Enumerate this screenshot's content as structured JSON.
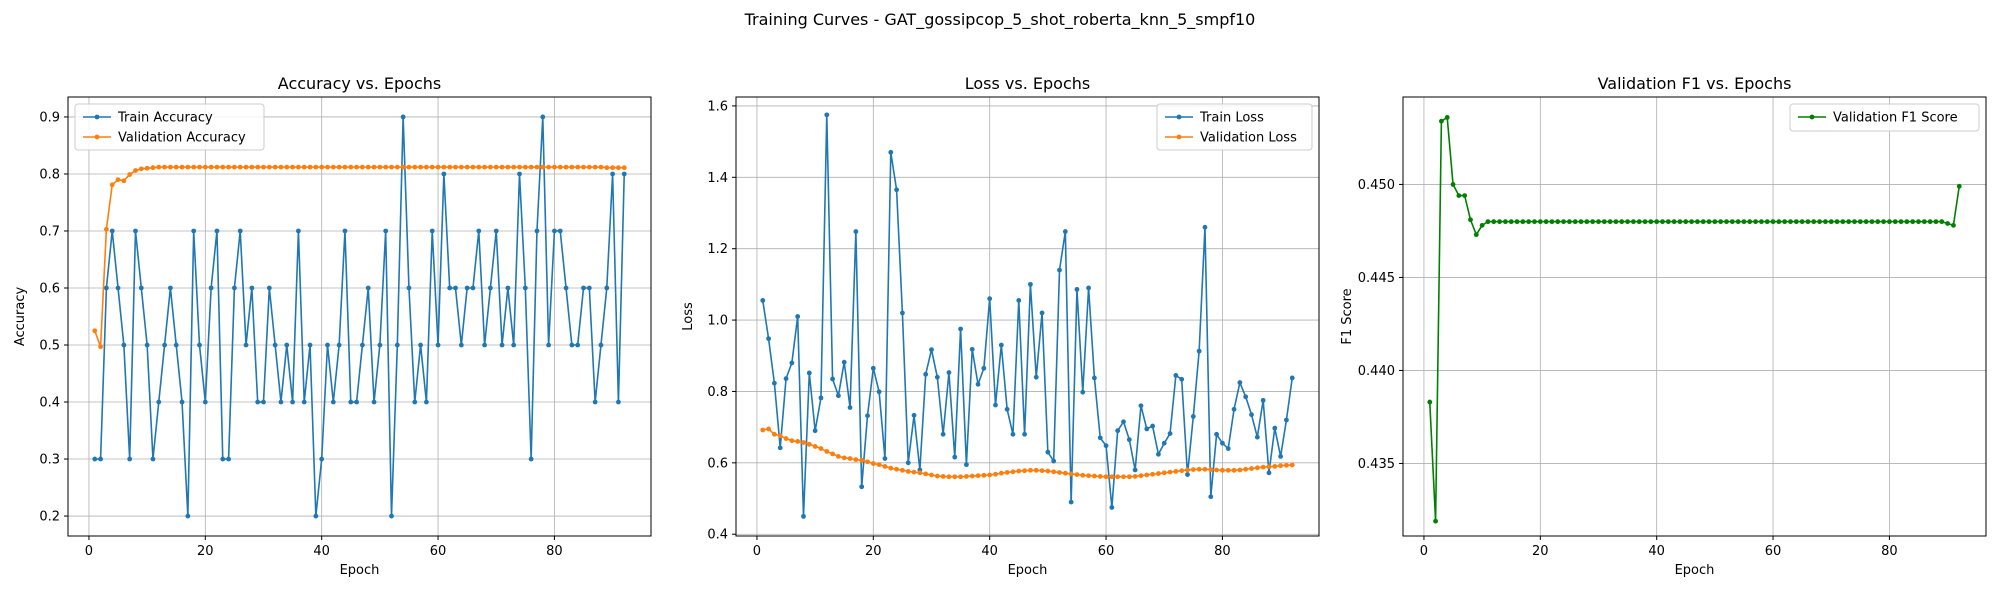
{
  "suptitle": "Training Curves - GAT_gossipcop_5_shot_roberta_knn_5_smpf10",
  "colors": {
    "blue": "#1f77b4",
    "orange": "#ff7f0e",
    "green": "#008000"
  },
  "chart_data": [
    {
      "type": "line",
      "title": "Accuracy vs. Epochs",
      "xlabel": "Epoch",
      "ylabel": "Accuracy",
      "xlim": [
        -3.6,
        96.6
      ],
      "ylim": [
        0.165,
        0.935
      ],
      "xticks": [
        0,
        20,
        40,
        60,
        80
      ],
      "yticks": [
        0.2,
        0.3,
        0.4,
        0.5,
        0.6,
        0.7,
        0.8,
        0.9
      ],
      "ytick_labels": [
        "0.2",
        "0.3",
        "0.4",
        "0.5",
        "0.6",
        "0.7",
        "0.8",
        "0.9"
      ],
      "legend_loc": "upper-left",
      "series": [
        {
          "name": "Train Accuracy",
          "color": "#1f77b4",
          "values": [
            0.3,
            0.3,
            0.6,
            0.7,
            0.6,
            0.5,
            0.3,
            0.7,
            0.6,
            0.5,
            0.3,
            0.4,
            0.5,
            0.6,
            0.5,
            0.4,
            0.2,
            0.7,
            0.5,
            0.4,
            0.6,
            0.7,
            0.3,
            0.3,
            0.6,
            0.7,
            0.5,
            0.6,
            0.4,
            0.4,
            0.6,
            0.5,
            0.4,
            0.5,
            0.4,
            0.7,
            0.4,
            0.5,
            0.2,
            0.3,
            0.5,
            0.4,
            0.5,
            0.7,
            0.4,
            0.4,
            0.5,
            0.6,
            0.4,
            0.5,
            0.7,
            0.2,
            0.5,
            0.9,
            0.6,
            0.4,
            0.5,
            0.4,
            0.7,
            0.5,
            0.8,
            0.6,
            0.6,
            0.5,
            0.6,
            0.6,
            0.7,
            0.5,
            0.6,
            0.7,
            0.5,
            0.6,
            0.5,
            0.8,
            0.6,
            0.3,
            0.7,
            0.9,
            0.5,
            0.7,
            0.7,
            0.6,
            0.5,
            0.5,
            0.6,
            0.6,
            0.4,
            0.5,
            0.6,
            0.8,
            0.4,
            0.8
          ]
        },
        {
          "name": "Validation Accuracy",
          "color": "#ff7f0e",
          "values": [
            0.525,
            0.497,
            0.703,
            0.781,
            0.79,
            0.788,
            0.799,
            0.806,
            0.809,
            0.81,
            0.811,
            0.812,
            0.812,
            0.812,
            0.812,
            0.812,
            0.812,
            0.812,
            0.812,
            0.812,
            0.812,
            0.812,
            0.812,
            0.812,
            0.812,
            0.812,
            0.812,
            0.812,
            0.812,
            0.812,
            0.812,
            0.812,
            0.812,
            0.812,
            0.812,
            0.812,
            0.812,
            0.812,
            0.812,
            0.812,
            0.812,
            0.812,
            0.812,
            0.812,
            0.812,
            0.812,
            0.812,
            0.812,
            0.812,
            0.812,
            0.812,
            0.812,
            0.812,
            0.812,
            0.812,
            0.812,
            0.812,
            0.812,
            0.812,
            0.812,
            0.812,
            0.812,
            0.812,
            0.812,
            0.812,
            0.812,
            0.812,
            0.812,
            0.812,
            0.812,
            0.812,
            0.812,
            0.812,
            0.812,
            0.812,
            0.812,
            0.812,
            0.812,
            0.812,
            0.812,
            0.812,
            0.812,
            0.812,
            0.812,
            0.812,
            0.812,
            0.812,
            0.812,
            0.811,
            0.811,
            0.811,
            0.811
          ]
        }
      ]
    },
    {
      "type": "line",
      "title": "Loss vs. Epochs",
      "xlabel": "Epoch",
      "ylabel": "Loss",
      "xlim": [
        -3.6,
        96.6
      ],
      "ylim": [
        0.395,
        1.625
      ],
      "xticks": [
        0,
        20,
        40,
        60,
        80
      ],
      "yticks": [
        0.4,
        0.6,
        0.8,
        1.0,
        1.2,
        1.4,
        1.6
      ],
      "ytick_labels": [
        "0.4",
        "0.6",
        "0.8",
        "1.0",
        "1.2",
        "1.4",
        "1.6"
      ],
      "legend_loc": "upper-right",
      "series": [
        {
          "name": "Train Loss",
          "color": "#1f77b4",
          "values": [
            1.055,
            0.948,
            0.823,
            0.642,
            0.836,
            0.88,
            1.01,
            0.45,
            0.852,
            0.69,
            0.782,
            1.575,
            0.835,
            0.788,
            0.882,
            0.755,
            1.248,
            0.533,
            0.732,
            0.865,
            0.799,
            0.612,
            1.47,
            1.365,
            1.02,
            0.6,
            0.733,
            0.58,
            0.848,
            0.917,
            0.84,
            0.68,
            0.853,
            0.616,
            0.975,
            0.595,
            0.918,
            0.82,
            0.865,
            1.06,
            0.762,
            0.93,
            0.75,
            0.68,
            1.055,
            0.68,
            1.1,
            0.84,
            1.02,
            0.63,
            0.605,
            1.14,
            1.248,
            0.49,
            1.086,
            0.798,
            1.09,
            0.838,
            0.67,
            0.648,
            0.475,
            0.69,
            0.715,
            0.665,
            0.58,
            0.76,
            0.695,
            0.703,
            0.624,
            0.655,
            0.682,
            0.845,
            0.834,
            0.567,
            0.73,
            0.913,
            1.26,
            0.505,
            0.68,
            0.655,
            0.64,
            0.75,
            0.825,
            0.785,
            0.735,
            0.672,
            0.775,
            0.572,
            0.697,
            0.618,
            0.72,
            0.838
          ]
        },
        {
          "name": "Validation Loss",
          "color": "#ff7f0e",
          "values": [
            0.692,
            0.695,
            0.68,
            0.676,
            0.668,
            0.662,
            0.66,
            0.657,
            0.652,
            0.646,
            0.64,
            0.632,
            0.625,
            0.618,
            0.614,
            0.612,
            0.609,
            0.607,
            0.603,
            0.598,
            0.595,
            0.59,
            0.585,
            0.582,
            0.579,
            0.576,
            0.574,
            0.572,
            0.569,
            0.566,
            0.563,
            0.562,
            0.561,
            0.561,
            0.561,
            0.562,
            0.563,
            0.564,
            0.565,
            0.566,
            0.568,
            0.571,
            0.573,
            0.575,
            0.577,
            0.578,
            0.579,
            0.579,
            0.578,
            0.577,
            0.575,
            0.573,
            0.571,
            0.569,
            0.567,
            0.565,
            0.564,
            0.563,
            0.562,
            0.561,
            0.561,
            0.561,
            0.561,
            0.561,
            0.562,
            0.564,
            0.566,
            0.568,
            0.57,
            0.572,
            0.574,
            0.576,
            0.578,
            0.58,
            0.581,
            0.582,
            0.582,
            0.581,
            0.58,
            0.579,
            0.579,
            0.579,
            0.58,
            0.582,
            0.584,
            0.586,
            0.588,
            0.589,
            0.59,
            0.592,
            0.593,
            0.594
          ]
        }
      ]
    },
    {
      "type": "line",
      "title": "Validation F1 vs. Epochs",
      "xlabel": "Epoch",
      "ylabel": "F1 Score",
      "xlim": [
        -3.6,
        96.6
      ],
      "ylim": [
        0.4311,
        0.4547
      ],
      "xticks": [
        0,
        20,
        40,
        60,
        80
      ],
      "yticks": [
        0.435,
        0.44,
        0.445,
        0.45
      ],
      "ytick_labels": [
        "0.435",
        "0.440",
        "0.445",
        "0.450"
      ],
      "legend_loc": "upper-right",
      "series": [
        {
          "name": "Validation F1 Score",
          "color": "#008000",
          "values": [
            0.4383,
            0.4319,
            0.4534,
            0.4536,
            0.45,
            0.4494,
            0.4494,
            0.4481,
            0.4473,
            0.4478,
            0.448,
            0.448,
            0.448,
            0.448,
            0.448,
            0.448,
            0.448,
            0.448,
            0.448,
            0.448,
            0.448,
            0.448,
            0.448,
            0.448,
            0.448,
            0.448,
            0.448,
            0.448,
            0.448,
            0.448,
            0.448,
            0.448,
            0.448,
            0.448,
            0.448,
            0.448,
            0.448,
            0.448,
            0.448,
            0.448,
            0.448,
            0.448,
            0.448,
            0.448,
            0.448,
            0.448,
            0.448,
            0.448,
            0.448,
            0.448,
            0.448,
            0.448,
            0.448,
            0.448,
            0.448,
            0.448,
            0.448,
            0.448,
            0.448,
            0.448,
            0.448,
            0.448,
            0.448,
            0.448,
            0.448,
            0.448,
            0.448,
            0.448,
            0.448,
            0.448,
            0.448,
            0.448,
            0.448,
            0.448,
            0.448,
            0.448,
            0.448,
            0.448,
            0.448,
            0.448,
            0.448,
            0.448,
            0.448,
            0.448,
            0.448,
            0.448,
            0.448,
            0.448,
            0.448,
            0.4479,
            0.4478,
            0.4499
          ]
        }
      ]
    }
  ]
}
